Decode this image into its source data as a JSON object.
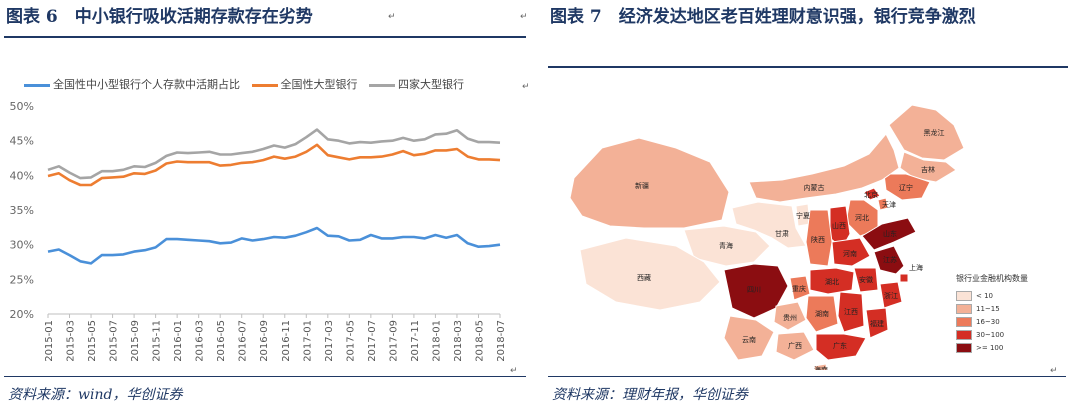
{
  "figure6": {
    "title": "图表 6　中小银行吸收活期存款存在劣势",
    "source": "资料来源：wind，华创证券",
    "chart_data": {
      "type": "line",
      "title": "",
      "ylim": [
        20,
        50
      ],
      "yticks": [
        "20%",
        "25%",
        "30%",
        "35%",
        "40%",
        "45%",
        "50%"
      ],
      "x": [
        "2015-01",
        "2015-02",
        "2015-03",
        "2015-04",
        "2015-05",
        "2015-06",
        "2015-07",
        "2015-08",
        "2015-09",
        "2015-10",
        "2015-11",
        "2015-12",
        "2016-01",
        "2016-02",
        "2016-03",
        "2016-04",
        "2016-05",
        "2016-06",
        "2016-07",
        "2016-08",
        "2016-09",
        "2016-10",
        "2016-11",
        "2016-12",
        "2017-01",
        "2017-02",
        "2017-03",
        "2017-04",
        "2017-05",
        "2017-06",
        "2017-07",
        "2017-08",
        "2017-09",
        "2017-10",
        "2017-11",
        "2017-12",
        "2018-01",
        "2018-02",
        "2018-03",
        "2018-04",
        "2018-05",
        "2018-06",
        "2018-07"
      ],
      "xticks": [
        "2015-01",
        "2015-03",
        "2015-05",
        "2015-07",
        "2015-09",
        "2015-11",
        "2016-01",
        "2016-03",
        "2016-05",
        "2016-07",
        "2016-09",
        "2016-11",
        "2017-01",
        "2017-03",
        "2017-05",
        "2017-07",
        "2017-09",
        "2017-11",
        "2018-01",
        "2018-03",
        "2018-05",
        "2018-07"
      ],
      "series": [
        {
          "name": "全国性中小型银行个人存款中活期占比",
          "color": "#4a90d9",
          "values": [
            29.0,
            29.3,
            28.5,
            27.6,
            27.3,
            28.5,
            28.5,
            28.6,
            29.0,
            29.2,
            29.6,
            30.8,
            30.8,
            30.7,
            30.6,
            30.5,
            30.2,
            30.3,
            30.9,
            30.6,
            30.8,
            31.1,
            31.0,
            31.3,
            31.8,
            32.4,
            31.3,
            31.2,
            30.6,
            30.7,
            31.4,
            30.9,
            30.9,
            31.1,
            31.1,
            30.9,
            31.4,
            31.0,
            31.4,
            30.2,
            29.7,
            29.8,
            30.0
          ]
        },
        {
          "name": "全国性大型银行",
          "color": "#ed7d31",
          "values": [
            39.9,
            40.3,
            39.3,
            38.6,
            38.6,
            39.6,
            39.7,
            39.8,
            40.3,
            40.2,
            40.7,
            41.7,
            42.0,
            41.9,
            41.9,
            41.9,
            41.4,
            41.5,
            41.8,
            41.9,
            42.2,
            42.7,
            42.4,
            42.7,
            43.4,
            44.4,
            42.9,
            42.6,
            42.3,
            42.6,
            42.6,
            42.7,
            43.0,
            43.5,
            42.9,
            43.1,
            43.6,
            43.6,
            43.8,
            42.7,
            42.3,
            42.3,
            42.2
          ]
        },
        {
          "name": "四家大型银行",
          "color": "#a5a5a5",
          "values": [
            40.8,
            41.3,
            40.4,
            39.6,
            39.7,
            40.6,
            40.6,
            40.8,
            41.3,
            41.2,
            41.8,
            42.8,
            43.3,
            43.2,
            43.3,
            43.4,
            43.0,
            43.0,
            43.2,
            43.4,
            43.8,
            44.3,
            44.0,
            44.5,
            45.5,
            46.6,
            45.2,
            45.0,
            44.6,
            44.8,
            44.7,
            44.9,
            45.0,
            45.4,
            45.0,
            45.2,
            45.9,
            46.0,
            46.5,
            45.3,
            44.8,
            44.8,
            44.7
          ]
        }
      ]
    }
  },
  "figure7": {
    "title": "图表 7　经济发达地区老百姓理财意识强，银行竞争激烈",
    "source": "资料来源：理财年报，华创证券",
    "legend_title": "银行业金融机构数量",
    "legend": [
      {
        "label": "< 10",
        "color": "#fbe3d6"
      },
      {
        "label": "11~15",
        "color": "#f3b197"
      },
      {
        "label": "16~30",
        "color": "#ec7a5a"
      },
      {
        "label": "30~100",
        "color": "#d42e24"
      },
      {
        "label": ">= 100",
        "color": "#8b0d11"
      }
    ],
    "provinces": [
      {
        "name": "黑龙江",
        "color": "#f3b197"
      },
      {
        "name": "吉林",
        "color": "#f3b197"
      },
      {
        "name": "辽宁",
        "color": "#ec7a5a"
      },
      {
        "name": "内蒙古",
        "color": "#f3b197"
      },
      {
        "name": "新疆",
        "color": "#f3b197"
      },
      {
        "name": "北京",
        "color": "#d42e24"
      },
      {
        "name": "天津",
        "color": "#ec7a5a"
      },
      {
        "name": "河北",
        "color": "#ec7a5a"
      },
      {
        "name": "山西",
        "color": "#d42e24"
      },
      {
        "name": "山东",
        "color": "#8b0d11"
      },
      {
        "name": "宁夏",
        "color": "#fbe3d6"
      },
      {
        "name": "甘肃",
        "color": "#fbe3d6"
      },
      {
        "name": "青海",
        "color": "#fbe3d6"
      },
      {
        "name": "陕西",
        "color": "#ec7a5a"
      },
      {
        "name": "河南",
        "color": "#d42e24"
      },
      {
        "name": "江苏",
        "color": "#8b0d11"
      },
      {
        "name": "安徽",
        "color": "#d42e24"
      },
      {
        "name": "上海",
        "color": "#d42e24"
      },
      {
        "name": "西藏",
        "color": "#fbe3d6"
      },
      {
        "name": "四川",
        "color": "#8b0d11"
      },
      {
        "name": "重庆",
        "color": "#ec7a5a"
      },
      {
        "name": "湖北",
        "color": "#d42e24"
      },
      {
        "name": "浙江",
        "color": "#d42e24"
      },
      {
        "name": "贵州",
        "color": "#f3b197"
      },
      {
        "name": "湖南",
        "color": "#ec7a5a"
      },
      {
        "name": "江西",
        "color": "#d42e24"
      },
      {
        "name": "福建",
        "color": "#d42e24"
      },
      {
        "name": "云南",
        "color": "#f3b197"
      },
      {
        "name": "广西",
        "color": "#f3b197"
      },
      {
        "name": "广东",
        "color": "#d42e24"
      },
      {
        "name": "海南",
        "color": "#f3b197"
      }
    ]
  }
}
